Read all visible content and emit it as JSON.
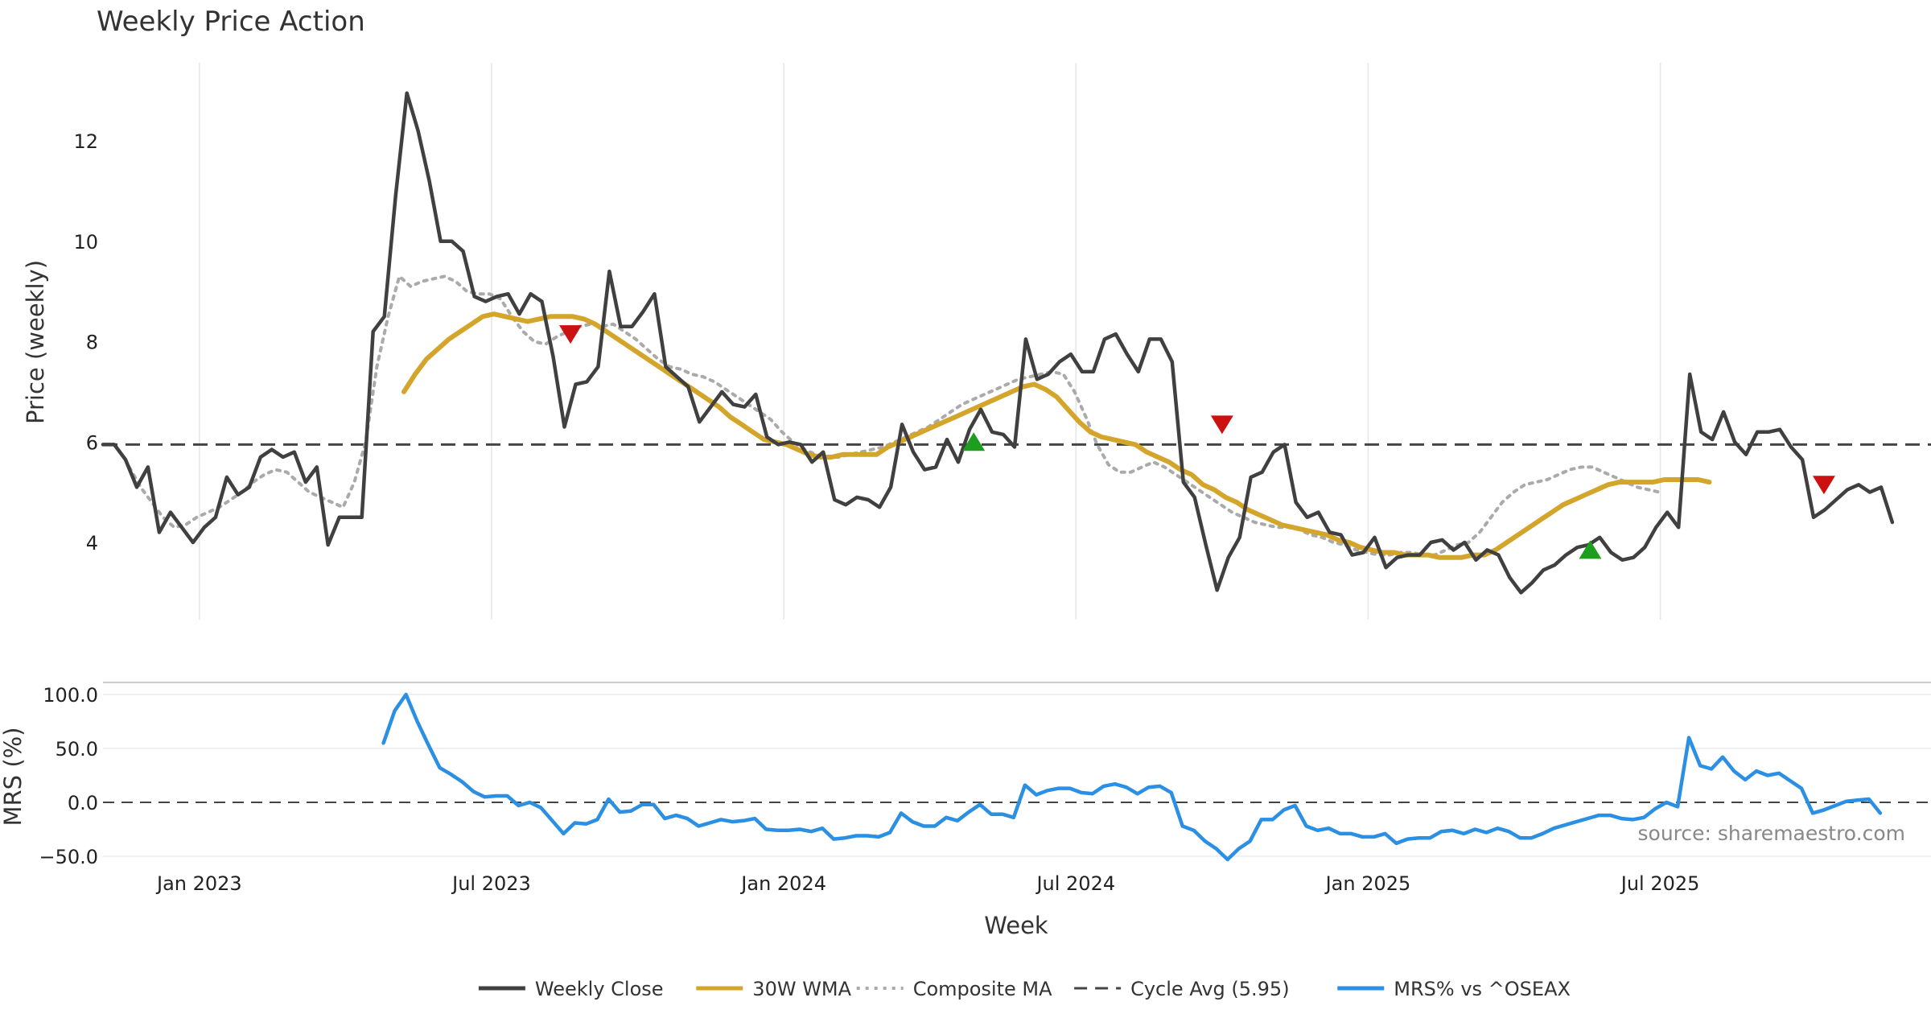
{
  "chart_data": {
    "type": "line",
    "title": "Weekly Price Action",
    "xlabel": "Week",
    "source": "source: sharemaestro.com",
    "x_ticks": [
      {
        "label": "Jan 2023",
        "t": 2023.0
      },
      {
        "label": "Jul 2023",
        "t": 2023.5
      },
      {
        "label": "Jan 2024",
        "t": 2024.0
      },
      {
        "label": "Jul 2024",
        "t": 2024.5
      },
      {
        "label": "Jan 2025",
        "t": 2025.0
      },
      {
        "label": "Jul 2025",
        "t": 2025.5
      }
    ],
    "price_panel": {
      "ylabel": "Price (weekly)",
      "ylim": [
        2.3,
        13.4
      ],
      "yticks": [
        4,
        6,
        8,
        10,
        12
      ],
      "cycle_avg": 5.95,
      "series": [
        {
          "name": "Weekly Close",
          "color": "#404040",
          "style": "solid",
          "t_start": 2022.835,
          "values": [
            5.95,
            5.95,
            5.65,
            5.1,
            5.5,
            4.2,
            4.6,
            4.3,
            4.0,
            4.3,
            4.5,
            5.3,
            4.95,
            5.1,
            5.7,
            5.85,
            5.7,
            5.8,
            5.2,
            5.5,
            3.95,
            4.5,
            4.5,
            4.5,
            8.2,
            8.5,
            10.9,
            12.95,
            12.2,
            11.2,
            10.0,
            10.0,
            9.8,
            8.9,
            8.8,
            8.9,
            8.95,
            8.55,
            8.95,
            8.8,
            7.7,
            6.3,
            7.15,
            7.2,
            7.5,
            9.4,
            8.3,
            8.3,
            8.6,
            8.95,
            7.5,
            7.3,
            7.1,
            6.4,
            6.7,
            7.0,
            6.75,
            6.7,
            6.95,
            6.1,
            5.95,
            6.0,
            5.95,
            5.6,
            5.8,
            4.85,
            4.75,
            4.9,
            4.85,
            4.7,
            5.1,
            6.35,
            5.8,
            5.45,
            5.5,
            6.05,
            5.6,
            6.25,
            6.65,
            6.2,
            6.15,
            5.9,
            8.05,
            7.25,
            7.35,
            7.6,
            7.75,
            7.4,
            7.4,
            8.05,
            8.15,
            7.75,
            7.4,
            8.05,
            8.05,
            7.6,
            5.2,
            4.9,
            3.95,
            3.05,
            3.7,
            4.1,
            5.3,
            5.4,
            5.8,
            5.95,
            4.8,
            4.5,
            4.6,
            4.2,
            4.15,
            3.75,
            3.8,
            4.1,
            3.5,
            3.7,
            3.75,
            3.75,
            4.0,
            4.05,
            3.85,
            4.0,
            3.65,
            3.85,
            3.75,
            3.3,
            3.0,
            3.2,
            3.45,
            3.55,
            3.75,
            3.9,
            3.95,
            4.1,
            3.8,
            3.65,
            3.7,
            3.9,
            4.3,
            4.6,
            4.3,
            7.35,
            6.2,
            6.05,
            6.6,
            6.0,
            5.75,
            6.2,
            6.2,
            6.25,
            5.9,
            5.65,
            4.5,
            4.65,
            4.85,
            5.05,
            5.15,
            5.0,
            5.1,
            4.4
          ]
        },
        {
          "name": "30W WMA",
          "color": "#D4A52B",
          "style": "solid",
          "t_start": 2023.35,
          "values": [
            7.0,
            7.35,
            7.65,
            7.85,
            8.05,
            8.2,
            8.35,
            8.5,
            8.55,
            8.5,
            8.45,
            8.4,
            8.45,
            8.5,
            8.5,
            8.5,
            8.45,
            8.35,
            8.2,
            8.05,
            7.9,
            7.75,
            7.6,
            7.45,
            7.3,
            7.15,
            7.0,
            6.85,
            6.7,
            6.5,
            6.35,
            6.2,
            6.05,
            6.0,
            5.95,
            5.85,
            5.75,
            5.7,
            5.7,
            5.75,
            5.75,
            5.75,
            5.75,
            5.9,
            6.0,
            6.1,
            6.2,
            6.3,
            6.4,
            6.5,
            6.6,
            6.7,
            6.8,
            6.9,
            7.0,
            7.1,
            7.15,
            7.05,
            6.9,
            6.65,
            6.4,
            6.2,
            6.1,
            6.05,
            6.0,
            5.95,
            5.8,
            5.7,
            5.6,
            5.45,
            5.35,
            5.15,
            5.05,
            4.9,
            4.8,
            4.65,
            4.55,
            4.45,
            4.35,
            4.3,
            4.25,
            4.2,
            4.15,
            4.05,
            4.0,
            3.9,
            3.85,
            3.8,
            3.8,
            3.75,
            3.75,
            3.75,
            3.7,
            3.7,
            3.7,
            3.75,
            3.75,
            3.85,
            4.0,
            4.15,
            4.3,
            4.45,
            4.6,
            4.75,
            4.85,
            4.95,
            5.05,
            5.15,
            5.2,
            5.2,
            5.2,
            5.2,
            5.25,
            5.25,
            5.25,
            5.25,
            5.2
          ]
        },
        {
          "name": "Composite MA",
          "color": "#AAAAAA",
          "style": "dotted",
          "t_start": 2022.88,
          "values": [
            5.5,
            5.1,
            4.8,
            4.5,
            4.3,
            4.35,
            4.5,
            4.6,
            4.7,
            4.85,
            5.0,
            5.2,
            5.35,
            5.45,
            5.4,
            5.2,
            5.0,
            4.9,
            4.8,
            4.7,
            5.2,
            6.0,
            7.5,
            8.5,
            9.3,
            9.1,
            9.2,
            9.25,
            9.3,
            9.2,
            9.0,
            8.95,
            8.95,
            8.85,
            8.5,
            8.2,
            8.0,
            7.95,
            8.1,
            8.2,
            8.3,
            8.35,
            8.3,
            8.35,
            8.2,
            8.05,
            7.85,
            7.65,
            7.5,
            7.45,
            7.35,
            7.3,
            7.2,
            7.05,
            6.9,
            6.75,
            6.6,
            6.45,
            6.2,
            6.0,
            5.85,
            5.75,
            5.7,
            5.7,
            5.75,
            5.8,
            5.85,
            5.9,
            6.0,
            6.1,
            6.2,
            6.3,
            6.45,
            6.6,
            6.75,
            6.85,
            6.95,
            7.05,
            7.15,
            7.25,
            7.3,
            7.35,
            7.4,
            7.35,
            7.0,
            6.5,
            5.95,
            5.55,
            5.4,
            5.4,
            5.5,
            5.6,
            5.5,
            5.35,
            5.2,
            5.05,
            4.9,
            4.75,
            4.6,
            4.5,
            4.4,
            4.35,
            4.3,
            4.3,
            4.25,
            4.15,
            4.1,
            4.0,
            3.95,
            3.85,
            3.8,
            3.75,
            3.75,
            3.8,
            3.8,
            3.75,
            3.75,
            3.85,
            3.95,
            4.0,
            4.2,
            4.5,
            4.8,
            5.0,
            5.15,
            5.2,
            5.25,
            5.35,
            5.45,
            5.5,
            5.5,
            5.4,
            5.3,
            5.2,
            5.1,
            5.05,
            5.0
          ]
        }
      ],
      "markers": [
        {
          "type": "sell",
          "t": 2023.635,
          "value": 8.15,
          "color": "#CC1111"
        },
        {
          "type": "buy",
          "t": 2024.325,
          "value": 6.0,
          "color": "#1E9E1E"
        },
        {
          "type": "sell",
          "t": 2024.75,
          "value": 6.35,
          "color": "#CC1111"
        },
        {
          "type": "buy",
          "t": 2025.38,
          "value": 3.85,
          "color": "#1E9E1E"
        },
        {
          "type": "sell",
          "t": 2025.78,
          "value": 5.15,
          "color": "#CC1111"
        }
      ]
    },
    "mrs_panel": {
      "ylabel": "MRS (%)",
      "ylim": [
        -60,
        108
      ],
      "yticks": [
        100.0,
        50.0,
        0.0,
        -50.0
      ],
      "ytick_labels": [
        "100.0",
        "50.0",
        "0.0",
        "−50.0"
      ],
      "series": [
        {
          "name": "MRS% vs ^OSEAX",
          "color": "#2B8FE3",
          "style": "solid",
          "t_start": 2023.315,
          "values": [
            55,
            85,
            100,
            75,
            53,
            32,
            26,
            19,
            10,
            5,
            6,
            6,
            -3,
            0,
            -5,
            -17,
            -29,
            -19,
            -20,
            -16,
            3,
            -9,
            -8,
            -2,
            -2,
            -15,
            -12,
            -15,
            -22,
            -19,
            -16,
            -18,
            -17,
            -15,
            -25,
            -26,
            -26,
            -25,
            -27,
            -24,
            -34,
            -33,
            -31,
            -31,
            -32,
            -28,
            -10,
            -18,
            -22,
            -22,
            -14,
            -17,
            -9,
            -2,
            -11,
            -11,
            -14,
            16,
            7,
            11,
            13,
            13,
            9,
            8,
            15,
            17,
            14,
            8,
            14,
            15,
            9,
            -22,
            -26,
            -36,
            -43,
            -53,
            -43,
            -36,
            -16,
            -16,
            -7,
            -3,
            -22,
            -26,
            -24,
            -29,
            -29,
            -32,
            -32,
            -29,
            -38,
            -34,
            -33,
            -33,
            -27,
            -26,
            -29,
            -25,
            -28,
            -24,
            -27,
            -33,
            -33,
            -29,
            -24,
            -21,
            -18,
            -15,
            -12,
            -12,
            -15,
            -16,
            -14,
            -6,
            0,
            -4,
            60,
            34,
            31,
            42,
            29,
            21,
            29,
            25,
            27,
            20,
            13,
            -10,
            -7,
            -3,
            1,
            2,
            3,
            -10
          ]
        }
      ]
    },
    "legend": [
      {
        "label": "Weekly Close",
        "color": "#404040",
        "style": "solid"
      },
      {
        "label": "30W WMA",
        "color": "#D4A52B",
        "style": "solid"
      },
      {
        "label": "Composite MA",
        "color": "#AAAAAA",
        "style": "dotted"
      },
      {
        "label": "Cycle Avg (5.95)",
        "color": "#444444",
        "style": "dashed"
      },
      {
        "label": "MRS% vs ^OSEAX",
        "color": "#2B8FE3",
        "style": "solid"
      }
    ]
  }
}
